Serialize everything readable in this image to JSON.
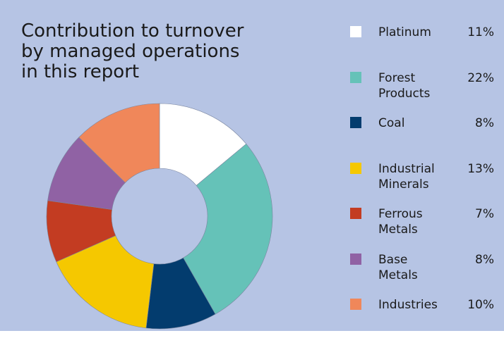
{
  "chart_data": {
    "type": "donut",
    "title": "Contribution to turnover by managed operations in this report",
    "categories": [
      "Platinum",
      "Forest Products",
      "Coal",
      "Industrial Minerals",
      "Ferrous Metals",
      "Base Metals",
      "Industries"
    ],
    "values": [
      11,
      22,
      8,
      13,
      7,
      8,
      10
    ],
    "value_labels": [
      "11%",
      "22%",
      "8%",
      "13%",
      "7%",
      "8%",
      "10%"
    ],
    "colors": [
      "#ffffff",
      "#65c2b8",
      "#033c6e",
      "#f5c800",
      "#c33c22",
      "#9062a4",
      "#f0875a"
    ]
  }
}
